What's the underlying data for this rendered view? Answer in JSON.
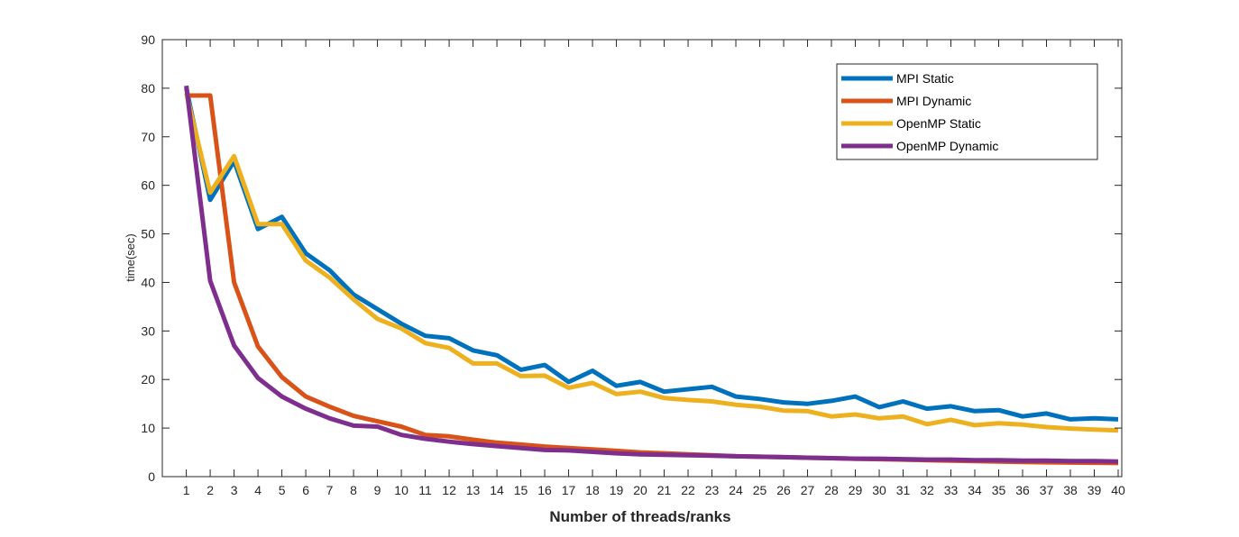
{
  "chart_data": {
    "type": "line",
    "title": "",
    "xlabel": "Number of threads/ranks",
    "ylabel": "time(sec)",
    "xlim": [
      0,
      40
    ],
    "ylim": [
      0,
      90
    ],
    "x": [
      1,
      2,
      3,
      4,
      5,
      6,
      7,
      8,
      9,
      10,
      11,
      12,
      13,
      14,
      15,
      16,
      17,
      18,
      19,
      20,
      21,
      22,
      23,
      24,
      25,
      26,
      27,
      28,
      29,
      30,
      31,
      32,
      33,
      34,
      35,
      36,
      37,
      38,
      39,
      40
    ],
    "x_tick_labels": [
      "1",
      "2",
      "3",
      "4",
      "5",
      "6",
      "7",
      "8",
      "9",
      "10",
      "11",
      "12",
      "13",
      "14",
      "15",
      "16",
      "17",
      "18",
      "19",
      "20",
      "21",
      "22",
      "23",
      "24",
      "25",
      "26",
      "27",
      "28",
      "29",
      "30",
      "31",
      "32",
      "33",
      "34",
      "35",
      "36",
      "37",
      "38",
      "39",
      "40"
    ],
    "y_tick_labels": [
      "0",
      "10",
      "20",
      "30",
      "40",
      "50",
      "60",
      "70",
      "80",
      "90"
    ],
    "grid": false,
    "legend_position": "top-right",
    "series": [
      {
        "name": "MPI Static",
        "color": "#0072BD",
        "values": [
          80.0,
          57.0,
          65.0,
          51.0,
          53.5,
          46.0,
          42.5,
          37.5,
          34.5,
          31.5,
          29.0,
          28.5,
          26.0,
          25.0,
          22.0,
          23.0,
          19.5,
          21.8,
          18.7,
          19.5,
          17.5,
          18.0,
          18.5,
          16.5,
          16.0,
          15.3,
          15.0,
          15.6,
          16.5,
          14.3,
          15.5,
          14.0,
          14.5,
          13.5,
          13.7,
          12.4,
          13.0,
          11.8,
          12.0,
          11.8
        ]
      },
      {
        "name": "MPI Dynamic",
        "color": "#D95319",
        "values": [
          78.5,
          78.5,
          40.0,
          26.8,
          20.5,
          16.5,
          14.4,
          12.5,
          11.4,
          10.3,
          8.6,
          8.3,
          7.6,
          7.0,
          6.6,
          6.2,
          5.9,
          5.6,
          5.3,
          5.0,
          4.8,
          4.6,
          4.4,
          4.2,
          4.1,
          4.0,
          3.9,
          3.8,
          3.7,
          3.6,
          3.5,
          3.4,
          3.3,
          3.2,
          3.1,
          3.0,
          2.95,
          2.9,
          2.85,
          2.8
        ]
      },
      {
        "name": "OpenMP Static",
        "color": "#EDB120",
        "values": [
          79.0,
          58.5,
          66.0,
          52.0,
          52.0,
          44.5,
          41.0,
          36.5,
          32.5,
          30.5,
          27.5,
          26.5,
          23.3,
          23.3,
          20.7,
          20.8,
          18.3,
          19.3,
          17.0,
          17.5,
          16.2,
          15.8,
          15.5,
          14.8,
          14.4,
          13.6,
          13.5,
          12.4,
          12.8,
          12.0,
          12.4,
          10.8,
          11.7,
          10.6,
          11.0,
          10.7,
          10.2,
          9.9,
          9.7,
          9.5
        ]
      },
      {
        "name": "OpenMP Dynamic",
        "color": "#7E2F8E",
        "values": [
          80.5,
          40.3,
          27.0,
          20.3,
          16.5,
          14.0,
          12.0,
          10.5,
          10.3,
          8.6,
          7.8,
          7.2,
          6.7,
          6.3,
          5.9,
          5.5,
          5.4,
          5.1,
          4.8,
          4.6,
          4.5,
          4.4,
          4.3,
          4.2,
          4.1,
          4.0,
          3.9,
          3.8,
          3.7,
          3.7,
          3.6,
          3.5,
          3.5,
          3.4,
          3.4,
          3.3,
          3.3,
          3.2,
          3.2,
          3.1
        ]
      }
    ]
  }
}
